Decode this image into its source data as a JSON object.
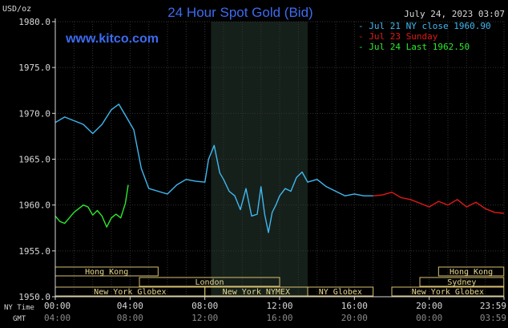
{
  "chart_data": {
    "type": "line",
    "title": "24 Hour Spot Gold (Bid)",
    "watermark": "www.kitco.com",
    "ylabel": "USD/oz",
    "timestamp": "July 24, 2023 03:07",
    "ylim": [
      1950.0,
      1980.0
    ],
    "yticks": [
      "1950.0",
      "1955.0",
      "1960.0",
      "1965.0",
      "1970.0",
      "1975.0",
      "1980.0"
    ],
    "grid": true,
    "legend_position": "top-right",
    "x_axis": {
      "ny_label": "NY Time",
      "gmt_label": "GMT",
      "ny_ticks": [
        "00:00",
        "04:00",
        "08:00",
        "12:00",
        "16:00",
        "20:00",
        "23:59"
      ],
      "gmt_ticks": [
        "04:00",
        "08:00",
        "12:00",
        "16:00",
        "20:00",
        "00:00",
        "03:59"
      ]
    },
    "shaded_session_hours": [
      8.33,
      13.5
    ],
    "sessions": [
      {
        "label": "Hong Kong",
        "start": 0.0,
        "end": 5.5,
        "row": 0
      },
      {
        "label": "Hong Kong",
        "start": 20.5,
        "end": 23.99,
        "row": 0
      },
      {
        "label": "London",
        "start": 4.5,
        "end": 12.0,
        "row": 1
      },
      {
        "label": "Sydney",
        "start": 19.5,
        "end": 23.99,
        "row": 1
      },
      {
        "label": "New York Globex",
        "start": 0.0,
        "end": 8.0,
        "row": 2
      },
      {
        "label": "New York NYMEX",
        "start": 8.0,
        "end": 13.5,
        "row": 2
      },
      {
        "label": "NY Globex",
        "start": 13.5,
        "end": 17.0,
        "row": 2
      },
      {
        "label": "New York Globex",
        "start": 18.0,
        "end": 23.99,
        "row": 2
      }
    ],
    "series": [
      {
        "name": "Jul 21 NY close 1960.90",
        "color": "#3fb8f0",
        "x": [
          0.0,
          0.5,
          1.0,
          1.5,
          2.0,
          2.5,
          3.0,
          3.4,
          3.8,
          4.2,
          4.6,
          5.0,
          5.5,
          6.0,
          6.5,
          7.0,
          7.5,
          8.0,
          8.2,
          8.5,
          8.8,
          9.0,
          9.3,
          9.6,
          9.9,
          10.2,
          10.5,
          10.8,
          11.0,
          11.2,
          11.4,
          11.6,
          11.8,
          12.0,
          12.3,
          12.6,
          12.9,
          13.2,
          13.5,
          14.0,
          14.5,
          15.0,
          15.5,
          16.0,
          16.5,
          17.0
        ],
        "values": [
          1969.0,
          1969.6,
          1969.2,
          1968.8,
          1967.8,
          1968.8,
          1970.4,
          1971.0,
          1969.6,
          1968.2,
          1964.0,
          1961.8,
          1961.5,
          1961.2,
          1962.2,
          1962.8,
          1962.6,
          1962.5,
          1965.0,
          1966.5,
          1963.5,
          1962.8,
          1961.5,
          1961.0,
          1959.5,
          1961.8,
          1958.8,
          1959.0,
          1962.0,
          1959.0,
          1957.0,
          1959.2,
          1960.0,
          1961.0,
          1961.8,
          1961.5,
          1963.0,
          1963.6,
          1962.5,
          1962.8,
          1962.0,
          1961.5,
          1961.0,
          1961.2,
          1961.0,
          1961.0
        ]
      },
      {
        "name": "Jul 23 Sunday",
        "color": "#e01818",
        "x": [
          17.0,
          17.5,
          18.0,
          18.5,
          19.0,
          19.5,
          20.0,
          20.5,
          21.0,
          21.5,
          22.0,
          22.5,
          23.0,
          23.5,
          23.99
        ],
        "values": [
          1961.0,
          1961.1,
          1961.4,
          1960.8,
          1960.6,
          1960.2,
          1959.8,
          1960.4,
          1960.0,
          1960.6,
          1959.8,
          1960.3,
          1959.6,
          1959.2,
          1959.1
        ]
      },
      {
        "name": "Jul 24 Last 1962.50",
        "color": "#2ee82e",
        "x": [
          0.0,
          0.25,
          0.5,
          0.75,
          1.0,
          1.25,
          1.5,
          1.75,
          2.0,
          2.25,
          2.5,
          2.75,
          3.0,
          3.25,
          3.5,
          3.75,
          3.9
        ],
        "values": [
          1958.8,
          1958.2,
          1958.0,
          1958.6,
          1959.2,
          1959.6,
          1960.0,
          1959.8,
          1958.9,
          1959.4,
          1958.8,
          1957.6,
          1958.6,
          1959.0,
          1958.6,
          1960.2,
          1962.2
        ]
      }
    ]
  }
}
